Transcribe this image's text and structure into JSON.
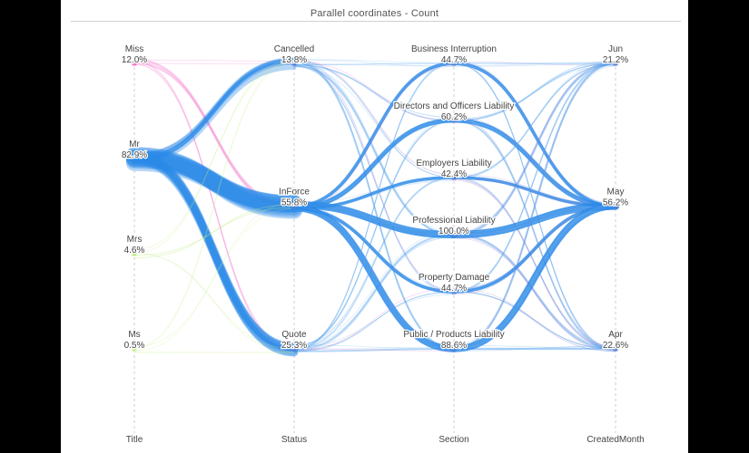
{
  "chart_data": {
    "type": "parallel-categories",
    "title": "Parallel coordinates - Count",
    "axes": [
      {
        "name": "Title",
        "categories": [
          {
            "label": "Miss",
            "pct": "12.0%"
          },
          {
            "label": "Mr",
            "pct": "82.9%"
          },
          {
            "label": "Mrs",
            "pct": "4.6%"
          },
          {
            "label": "Ms",
            "pct": "0.5%"
          }
        ]
      },
      {
        "name": "Status",
        "categories": [
          {
            "label": "Cancelled",
            "pct": "13.8%"
          },
          {
            "label": "InForce",
            "pct": "55.8%"
          },
          {
            "label": "Quote",
            "pct": "25.3%"
          }
        ]
      },
      {
        "name": "Section",
        "categories": [
          {
            "label": "Business Interruption",
            "pct": "44.7%"
          },
          {
            "label": "Directors and Officers Liability",
            "pct": "60.2%"
          },
          {
            "label": "Employers Liability",
            "pct": "42.4%"
          },
          {
            "label": "Professional Liability",
            "pct": "100.0%"
          },
          {
            "label": "Property Damage",
            "pct": "44.7%"
          },
          {
            "label": "Public / Products Liability",
            "pct": "88.6%"
          }
        ]
      },
      {
        "name": "CreatedMonth",
        "categories": [
          {
            "label": "Jun",
            "pct": "21.2%"
          },
          {
            "label": "May",
            "pct": "56.2%"
          },
          {
            "label": "Apr",
            "pct": "22.6%"
          }
        ]
      }
    ],
    "colors": {
      "Miss": "#f06fc8",
      "Mr": "#2b8ae8",
      "Mrs": "#b9ec7a",
      "Ms": "#c8f08c"
    }
  }
}
